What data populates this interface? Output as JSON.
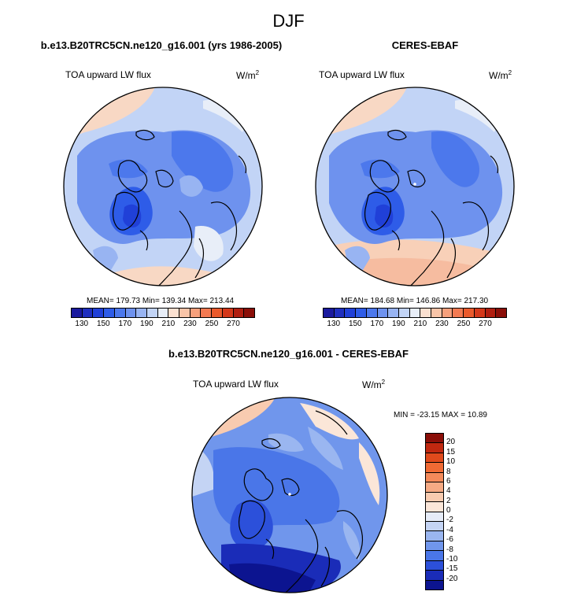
{
  "main_title": "DJF",
  "panels": [
    {
      "title": "b.e13.B20TRC5CN.ne120_g16.001 (yrs 1986-2005)",
      "variable": "TOA upward LW flux",
      "units_base": "W/m",
      "units_exp": "2",
      "stats": "MEAN= 179.73  Min= 139.34  Max= 213.44"
    },
    {
      "title": "CERES-EBAF",
      "variable": "TOA upward LW flux",
      "units_base": "W/m",
      "units_exp": "2",
      "stats": "MEAN= 184.68  Min= 146.86  Max= 217.30"
    },
    {
      "title": "b.e13.B20TRC5CN.ne120_g16.001 - CERES-EBAF",
      "variable": "TOA upward LW flux",
      "units_base": "W/m",
      "units_exp": "2",
      "stats": "MIN = -23.15 MAX =  10.89"
    }
  ],
  "colorbar_abs": {
    "labels": [
      "130",
      "150",
      "170",
      "190",
      "210",
      "230",
      "250",
      "270"
    ],
    "colors": [
      "#1a1a9e",
      "#1f2fbf",
      "#2040d8",
      "#2e5ce8",
      "#4c78ec",
      "#6e92ee",
      "#98b4f2",
      "#c2d4f6",
      "#e8eef8",
      "#fbe0d0",
      "#f8c4a8",
      "#f6a07c",
      "#f37a52",
      "#ea5a2c",
      "#d4381a",
      "#b01e10",
      "#8a0e08"
    ]
  },
  "colorbar_diff": {
    "labels": [
      "20",
      "15",
      "10",
      "8",
      "6",
      "4",
      "2",
      "0",
      "-2",
      "-4",
      "-6",
      "-8",
      "-10",
      "-15",
      "-20"
    ],
    "colors": [
      "#8a0e08",
      "#c02810",
      "#e04a1c",
      "#f06a34",
      "#f48a5a",
      "#f6aa84",
      "#f8cbb0",
      "#fbe6d8",
      "#e6ecf8",
      "#c4d4f4",
      "#9ab6f0",
      "#7096ec",
      "#4a76e8",
      "#2c50da",
      "#1a2cb8",
      "#0c1490"
    ]
  }
}
